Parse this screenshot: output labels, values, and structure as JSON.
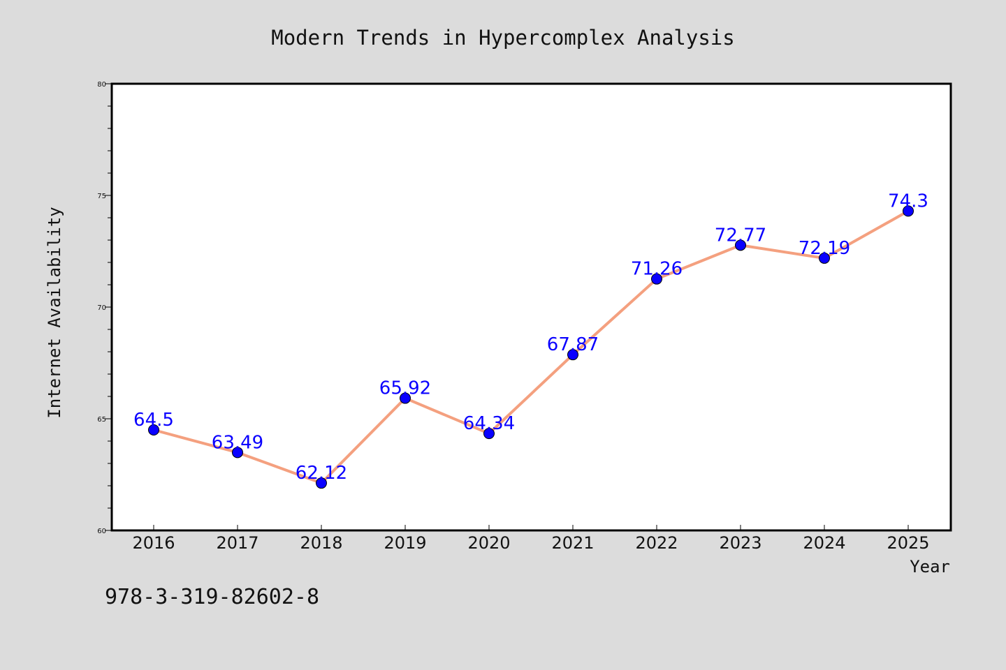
{
  "chart_data": {
    "type": "line",
    "title": "Modern Trends in Hypercomplex Analysis",
    "xlabel": "Year",
    "ylabel": "Internet Availability",
    "x": [
      "2016",
      "2017",
      "2018",
      "2019",
      "2020",
      "2021",
      "2022",
      "2023",
      "2024",
      "2025"
    ],
    "series": [
      {
        "values": [
          64.5,
          63.49,
          62.12,
          65.92,
          64.34,
          67.87,
          71.26,
          72.77,
          72.19,
          74.3
        ],
        "labels": [
          "64.5",
          "63.49",
          "62.12",
          "65.92",
          "64.34",
          "67.87",
          "71.26",
          "72.77",
          "72.19",
          "74.3"
        ]
      }
    ],
    "ylim": [
      60,
      80
    ],
    "yticks": [
      "60",
      "65",
      "70",
      "75",
      "80"
    ],
    "grid": false,
    "line_color": "#f4a07f",
    "marker_color": "#0a00ff"
  },
  "annotation": "978-3-319-82602-8"
}
